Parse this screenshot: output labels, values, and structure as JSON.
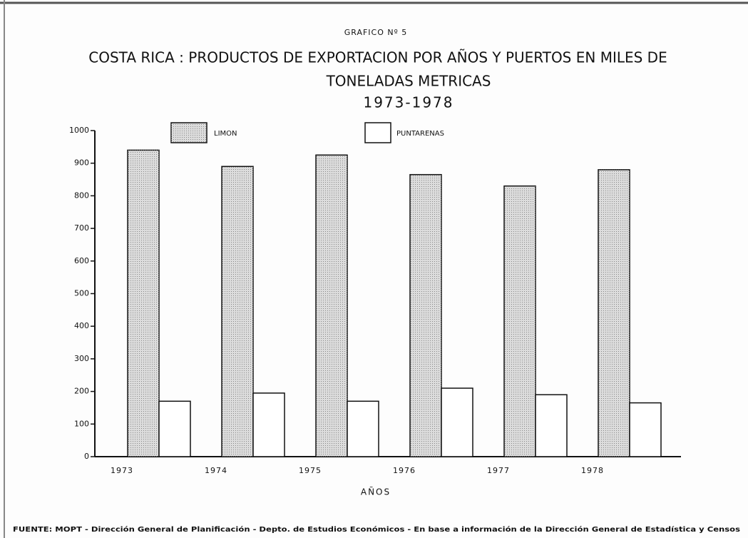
{
  "chart_data": {
    "type": "bar",
    "figure_label": "GRAFICO Nº 5",
    "title": [
      "COSTA RICA : PRODUCTOS DE EXPORTACION POR AÑOS Y PUERTOS EN MILES DE",
      "TONELADAS METRICAS"
    ],
    "subtitle": "1973-1978",
    "x_label": "AÑOS",
    "source": "FUENTE: MOPT - Dirección General de Planificación - Depto. de Estudios Económicos - En base a información de la Dirección General de Estadística y Censos",
    "categories": [
      "1973",
      "1974",
      "1975",
      "1976",
      "1977",
      "1978"
    ],
    "series": [
      {
        "name": "LIMON",
        "color": "#dcdcdc",
        "values": [
          940,
          890,
          925,
          865,
          830,
          880
        ]
      },
      {
        "name": "PUNTARENAS",
        "color": "#ffffff",
        "values": [
          170,
          195,
          170,
          210,
          190,
          165
        ]
      }
    ],
    "ylim": [
      0,
      1000
    ],
    "yticks": [
      0,
      100,
      200,
      300,
      400,
      500,
      600,
      700,
      800,
      900,
      1000
    ]
  }
}
